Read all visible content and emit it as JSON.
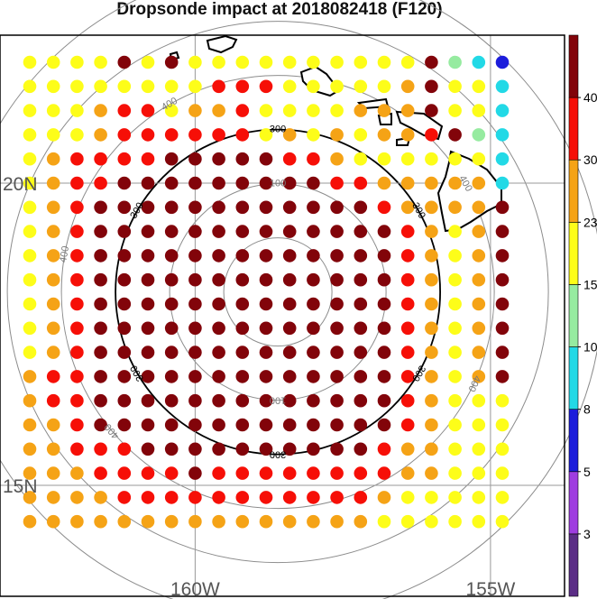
{
  "title": "Dropsonde impact at 2018082418 (F120)",
  "chart_data": {
    "type": "scatter",
    "title": "Dropsonde impact at 2018082418 (F120)",
    "map": {
      "lon_labels": [
        "160W",
        "155W"
      ],
      "lat_labels": [
        "20N",
        "15N"
      ],
      "lon_grid": [
        -160,
        -155
      ],
      "lat_grid": [
        15,
        20
      ]
    },
    "grid": {
      "lon_start": -162.8,
      "lon_step": 0.4,
      "lat_start": 22.0,
      "lat_step": -0.4,
      "rows": 20,
      "cols": 21
    },
    "values": [
      "44447474444444444789A",
      "444444446664444457449",
      "444566455644445557449",
      "444566666645454556789",
      "456666777776654444449",
      "456677777777766555559",
      "456777777777777655557",
      "456777777777777765457",
      "456777777777777765457",
      "456777777777777765457",
      "456777777777777765457",
      "456777777777777765457",
      "456777777777777765457",
      "566777777777777765457",
      "566777777777777765444",
      "556777777777777765444",
      "556667777777777655444",
      "555666676666666655444",
      "555566666666666544444",
      "555555555555555444444"
    ],
    "value_key": {
      "4": "15-23",
      "5": "23-30",
      "6": "30-40",
      "7": "40+",
      "8": "10-15",
      "9": "8-10",
      "A": "5-8"
    },
    "range_rings": {
      "center_lon": -158.6,
      "center_lat": 18.2,
      "labels": [
        "100",
        "300",
        "400"
      ],
      "radii": [
        100,
        200,
        300,
        400,
        500,
        600
      ],
      "bold": 300
    },
    "colorbar": {
      "labels": [
        "3",
        "5",
        "8",
        "10",
        "15",
        "23",
        "30",
        "40"
      ],
      "colors": [
        "#5b2d86",
        "#9f3de0",
        "#1c1ddb",
        "#22d9e6",
        "#96eba0",
        "#fdfd19",
        "#f5a316",
        "#f60f07",
        "#82040a"
      ]
    },
    "dot_colors": {
      "4": "#fdfd19",
      "5": "#f5a316",
      "6": "#f60f07",
      "7": "#82040a",
      "8": "#96eba0",
      "9": "#22d9e6",
      "A": "#1c1ddb"
    }
  }
}
